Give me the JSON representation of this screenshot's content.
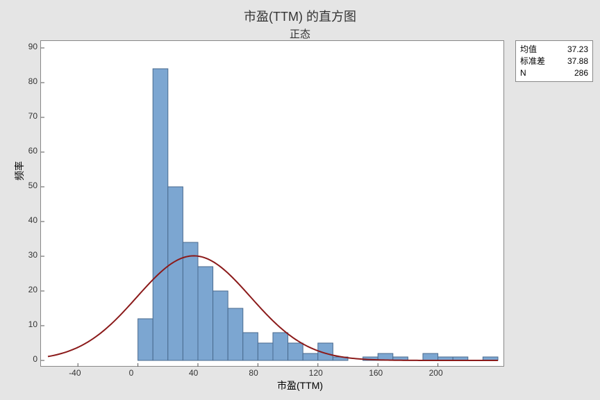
{
  "title": "市盈(TTM) 的直方图",
  "subtitle": "正态",
  "ylabel": "频率",
  "xlabel": "市盈(TTM)",
  "stats": {
    "mean_label": "均值",
    "mean_value": "37.23",
    "stdev_label": "标准差",
    "stdev_value": "37.88",
    "n_label": "N",
    "n_value": "286"
  },
  "chart": {
    "type": "histogram",
    "plot_bg": "#ffffff",
    "page_bg": "#e5e5e5",
    "xlim": [
      -60,
      240
    ],
    "ylim": [
      0,
      90
    ],
    "xticks": [
      -40,
      0,
      40,
      80,
      120,
      160,
      200
    ],
    "yticks": [
      0,
      10,
      20,
      30,
      40,
      50,
      60,
      70,
      80,
      90
    ],
    "bar_fill": "#7ca6d1",
    "bar_stroke": "#4a6a8e",
    "bin_width": 10,
    "bins_start": 0,
    "values": [
      12,
      84,
      50,
      34,
      27,
      20,
      15,
      8,
      5,
      8,
      5,
      2,
      5,
      1,
      0,
      1,
      2,
      1,
      0,
      2,
      1,
      1,
      0,
      1
    ],
    "curve_color": "#8b1a1a",
    "curve_mean": 37.23,
    "curve_stdev": 37.88,
    "curve_n": 286
  }
}
